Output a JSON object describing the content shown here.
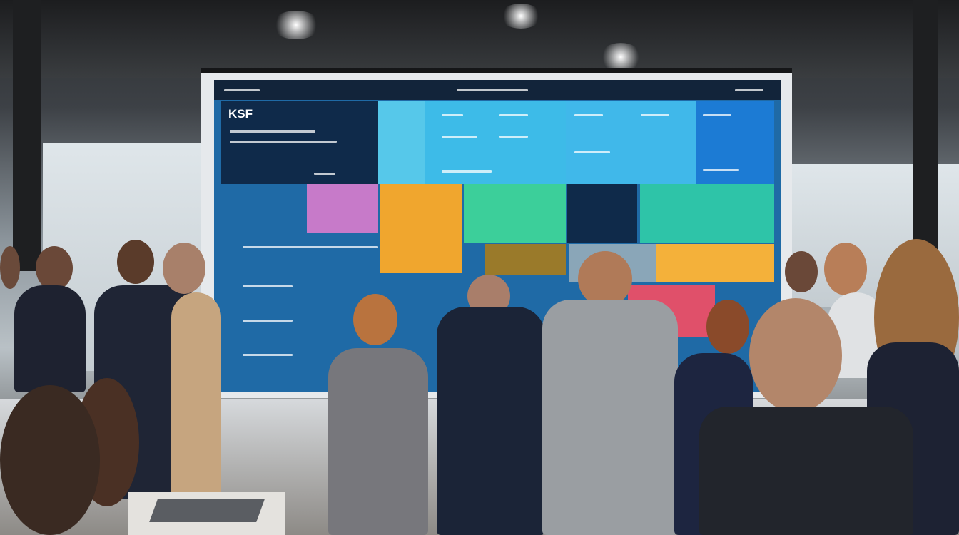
{
  "screen": {
    "title_tile_text": "KSF",
    "colors": {
      "header": "#12243a",
      "navy": "#0f2a4a",
      "cyan": "#3dbbe8",
      "blue": "#1f6aa6",
      "pink": "#c77ac9",
      "orange": "#f0a62e",
      "green": "#3ccf9a",
      "teal": "#2ec4a8",
      "red": "#e0506a"
    }
  }
}
